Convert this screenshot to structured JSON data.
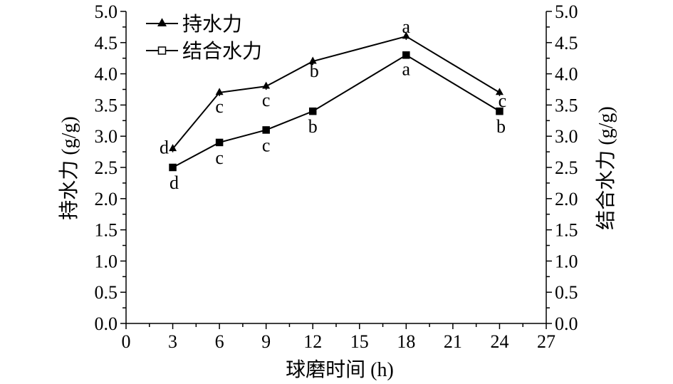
{
  "chart_data": {
    "type": "line",
    "x": [
      3,
      6,
      9,
      12,
      18,
      24
    ],
    "xlabel": "球磨时间 (h)",
    "ylabel": "持水力 (g/g)",
    "y2label": "结合水力 (g/g)",
    "xlim": [
      0,
      27
    ],
    "ylim": [
      0,
      5
    ],
    "xticks": [
      "0",
      "3",
      "6",
      "9",
      "12",
      "15",
      "18",
      "21",
      "24",
      "27"
    ],
    "yticks": [
      "0.0",
      "0.5",
      "1.0",
      "1.5",
      "2.0",
      "2.5",
      "3.0",
      "3.5",
      "4.0",
      "4.5",
      "5.0"
    ],
    "grid": false,
    "legend_position": "top-left",
    "series": [
      {
        "name": "持水力",
        "marker": "triangle",
        "axis": "left",
        "values": [
          2.8,
          3.7,
          3.8,
          4.2,
          4.6,
          3.7
        ],
        "labels": [
          "d",
          "c",
          "c",
          "b",
          "a",
          "c"
        ]
      },
      {
        "name": "结合水力",
        "marker": "square",
        "axis": "right",
        "values": [
          2.5,
          2.9,
          3.1,
          3.4,
          4.3,
          3.4
        ],
        "labels": [
          "d",
          "c",
          "c",
          "b",
          "a",
          "b"
        ]
      }
    ]
  }
}
